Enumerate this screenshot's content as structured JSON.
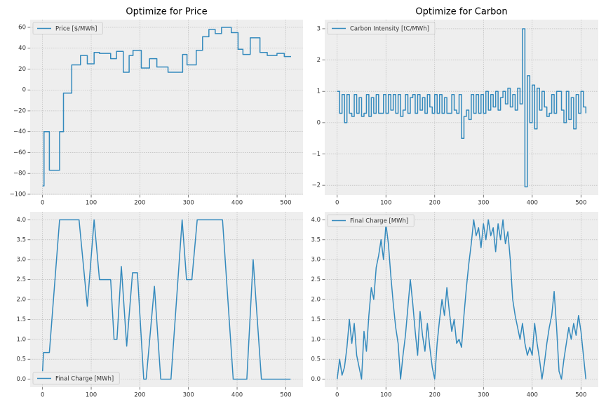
{
  "chart_data": [
    {
      "type": "line",
      "title": "Optimize for Price",
      "drawstyle": "steps-post",
      "grid": true,
      "legend": "upper left",
      "x": [
        0,
        3,
        14,
        35,
        43,
        60,
        78,
        92,
        106,
        117,
        140,
        152,
        166,
        178,
        186,
        203,
        220,
        235,
        258,
        288,
        297,
        316,
        329,
        342,
        355,
        368,
        388,
        402,
        412,
        427,
        447,
        462,
        482,
        497,
        511
      ],
      "series": [
        {
          "name": "Price [$/MWh]",
          "color": "#348abd",
          "values": [
            -92,
            -40,
            -77,
            -40,
            -3,
            24,
            33,
            25,
            36,
            35,
            30,
            37,
            17,
            33,
            38,
            21,
            30,
            22,
            17,
            34,
            24,
            38,
            51,
            58,
            54,
            60,
            55,
            39,
            34,
            50,
            36,
            33,
            35,
            32,
            32
          ]
        }
      ],
      "xlim": [
        -25.5,
        535.5
      ],
      "ylim": [
        -100.7,
        67.4
      ],
      "xticks": [
        0,
        100,
        200,
        300,
        400,
        500
      ],
      "yticks": [
        {
          "value": -100,
          "label": "−100"
        },
        {
          "value": -80,
          "label": "−80"
        },
        {
          "value": -60,
          "label": "−60"
        },
        {
          "value": -40,
          "label": "−40"
        },
        {
          "value": -20,
          "label": "−20"
        },
        0,
        20,
        40,
        60
      ]
    },
    {
      "type": "line",
      "title": "Optimize for Carbon",
      "drawstyle": "steps-post",
      "grid": true,
      "legend": "upper left",
      "x": [
        0,
        5,
        10,
        15,
        20,
        25,
        30,
        35,
        40,
        45,
        50,
        55,
        60,
        65,
        70,
        75,
        80,
        85,
        90,
        95,
        100,
        105,
        110,
        115,
        120,
        125,
        130,
        135,
        140,
        145,
        150,
        155,
        160,
        165,
        170,
        175,
        180,
        185,
        190,
        195,
        200,
        205,
        210,
        215,
        220,
        225,
        230,
        235,
        240,
        245,
        250,
        255,
        260,
        265,
        270,
        275,
        280,
        285,
        290,
        295,
        300,
        305,
        310,
        315,
        320,
        325,
        330,
        335,
        340,
        345,
        350,
        355,
        360,
        365,
        370,
        375,
        380,
        385,
        390,
        395,
        400,
        405,
        410,
        415,
        420,
        425,
        430,
        435,
        440,
        445,
        450,
        455,
        460,
        465,
        470,
        475,
        480,
        485,
        490,
        495,
        500,
        505,
        510
      ],
      "series": [
        {
          "name": "Carbon Intensity [tC/MWh]",
          "color": "#348abd",
          "values": [
            1.0,
            0.3,
            0.9,
            0.0,
            0.9,
            0.3,
            0.2,
            0.9,
            0.3,
            0.8,
            0.2,
            0.3,
            0.9,
            0.2,
            0.8,
            0.3,
            0.9,
            0.3,
            0.3,
            0.9,
            0.3,
            0.9,
            0.4,
            0.9,
            0.3,
            0.9,
            0.2,
            0.4,
            0.9,
            0.3,
            0.8,
            0.9,
            0.3,
            0.9,
            0.4,
            0.8,
            0.3,
            0.9,
            0.5,
            0.3,
            0.9,
            0.3,
            0.9,
            0.3,
            0.8,
            0.3,
            0.3,
            0.9,
            0.4,
            0.3,
            0.9,
            -0.5,
            0.2,
            0.4,
            0.1,
            0.9,
            0.3,
            0.9,
            0.3,
            0.9,
            0.3,
            1.0,
            0.4,
            0.9,
            0.5,
            1.0,
            0.4,
            0.8,
            1.0,
            0.6,
            1.1,
            0.5,
            0.9,
            0.4,
            1.1,
            0.6,
            3.0,
            -2.05,
            1.5,
            0.0,
            1.2,
            -0.2,
            1.1,
            0.4,
            1.0,
            0.5,
            0.2,
            0.3,
            0.9,
            0.3,
            1.0,
            1.0,
            0.4,
            0.0,
            1.0,
            0.1,
            0.8,
            -0.2,
            0.9,
            0.3,
            1.0,
            0.5,
            0.3
          ]
        }
      ],
      "xlim": [
        -25.5,
        535.5
      ],
      "ylim": [
        -2.31,
        3.29
      ],
      "xticks": [
        0,
        100,
        200,
        300,
        400,
        500
      ],
      "yticks": [
        {
          "value": -2,
          "label": "−2"
        },
        {
          "value": -1,
          "label": "−1"
        },
        0,
        1,
        2,
        3
      ]
    },
    {
      "type": "line",
      "grid": true,
      "legend": "lower left",
      "x": [
        0,
        2,
        14,
        35,
        75,
        92,
        106,
        117,
        140,
        147,
        153,
        162,
        173,
        185,
        195,
        208,
        213,
        230,
        243,
        264,
        287,
        296,
        307,
        318,
        370,
        392,
        420,
        433,
        450,
        510
      ],
      "series": [
        {
          "name": "Final Charge [MWh]",
          "color": "#348abd",
          "values": [
            0.2,
            0.67,
            0.67,
            4.0,
            4.0,
            1.83,
            4.0,
            2.5,
            2.5,
            1.0,
            1.0,
            2.83,
            0.83,
            2.67,
            2.67,
            0,
            0,
            2.33,
            0,
            0,
            4.0,
            2.5,
            2.5,
            4.0,
            4.0,
            0,
            0,
            3.0,
            0,
            0
          ]
        }
      ],
      "xlim": [
        -25.5,
        535.5
      ],
      "ylim": [
        -0.2,
        4.2
      ],
      "xticks": [
        0,
        100,
        200,
        300,
        400,
        500
      ],
      "yticks": [
        {
          "value": 0,
          "label": "0.0"
        },
        0.5,
        {
          "value": 1,
          "label": "1.0"
        },
        1.5,
        {
          "value": 2,
          "label": "2.0"
        },
        2.5,
        {
          "value": 3,
          "label": "3.0"
        },
        3.5,
        {
          "value": 4,
          "label": "4.0"
        }
      ]
    },
    {
      "type": "line",
      "grid": true,
      "legend": "upper left",
      "x": [
        0,
        5,
        10,
        15,
        20,
        25,
        30,
        35,
        40,
        45,
        50,
        55,
        60,
        65,
        70,
        75,
        80,
        85,
        90,
        95,
        100,
        105,
        110,
        115,
        120,
        125,
        130,
        135,
        140,
        145,
        150,
        155,
        160,
        165,
        170,
        175,
        180,
        185,
        190,
        195,
        200,
        205,
        210,
        215,
        220,
        225,
        230,
        235,
        240,
        245,
        250,
        255,
        260,
        265,
        270,
        275,
        280,
        285,
        290,
        295,
        300,
        305,
        310,
        315,
        320,
        325,
        330,
        335,
        340,
        345,
        350,
        355,
        360,
        365,
        370,
        375,
        380,
        385,
        390,
        395,
        400,
        405,
        410,
        415,
        420,
        425,
        430,
        435,
        440,
        445,
        450,
        455,
        460,
        465,
        470,
        475,
        480,
        485,
        490,
        495,
        500,
        505,
        510
      ],
      "series": [
        {
          "name": "Final Charge [MWh]",
          "color": "#348abd",
          "values": [
            0,
            0.5,
            0.1,
            0.3,
            0.8,
            1.5,
            0.9,
            1.4,
            0.6,
            0.3,
            0,
            1.2,
            0.7,
            1.6,
            2.3,
            2.0,
            2.8,
            3.1,
            3.5,
            3.0,
            3.9,
            3.4,
            2.6,
            1.9,
            1.3,
            0.9,
            0,
            0.6,
            1.1,
            1.8,
            2.5,
            1.9,
            1.2,
            0.6,
            1.7,
            1.1,
            0.7,
            1.4,
            0.8,
            0.3,
            0,
            0.9,
            1.5,
            2.0,
            1.6,
            2.3,
            1.7,
            1.2,
            1.5,
            0.9,
            1.0,
            0.8,
            1.6,
            2.3,
            2.9,
            3.4,
            4.0,
            3.6,
            3.8,
            3.3,
            3.9,
            3.5,
            4.0,
            3.6,
            3.8,
            3.2,
            3.9,
            3.5,
            4.0,
            3.4,
            3.7,
            3.0,
            2.0,
            1.6,
            1.3,
            1.0,
            1.4,
            0.9,
            0.6,
            0.8,
            0.6,
            1.4,
            0.9,
            0.5,
            0.0,
            0.4,
            0.9,
            1.3,
            1.6,
            2.2,
            1.3,
            0.2,
            0.0,
            0.5,
            0.9,
            1.3,
            1.0,
            1.4,
            1.1,
            1.6,
            1.2,
            0.6,
            0.0
          ]
        }
      ],
      "xlim": [
        -25.5,
        535.5
      ],
      "ylim": [
        -0.2,
        4.2
      ],
      "xticks": [
        0,
        100,
        200,
        300,
        400,
        500
      ],
      "yticks": [
        {
          "value": 0,
          "label": "0.0"
        },
        0.5,
        {
          "value": 1,
          "label": "1.0"
        },
        1.5,
        {
          "value": 2,
          "label": "2.0"
        },
        2.5,
        {
          "value": 3,
          "label": "3.0"
        },
        3.5,
        {
          "value": 4,
          "label": "4.0"
        }
      ]
    }
  ]
}
